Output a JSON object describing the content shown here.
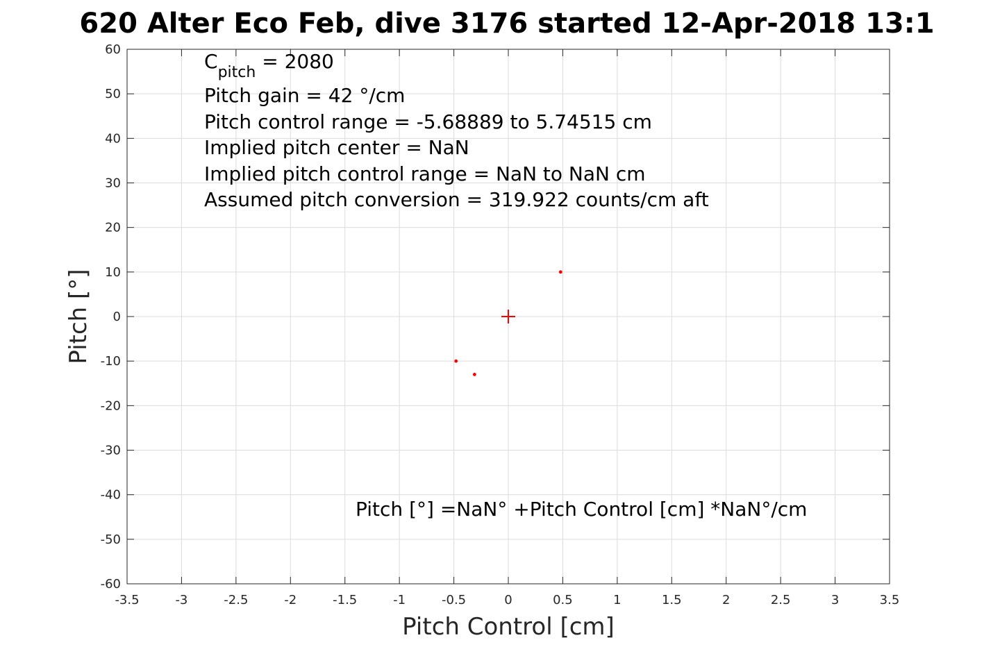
{
  "chart_data": {
    "type": "scatter",
    "title": "620 Alter Eco Feb, dive 3176 started 12-Apr-2018 13:1",
    "xlabel": "Pitch Control [cm]",
    "ylabel": "Pitch [°]",
    "xlim": [
      -3.5,
      3.5
    ],
    "ylim": [
      -60,
      60
    ],
    "xticks": [
      -3.5,
      -3,
      -2.5,
      -2,
      -1.5,
      -1,
      -0.5,
      0,
      0.5,
      1,
      1.5,
      2,
      2.5,
      3,
      3.5
    ],
    "xtick_labels": [
      "-3.5",
      "-3",
      "-2.5",
      "-2",
      "-1.5",
      "-1",
      "-0.5",
      "0",
      "0.5",
      "1",
      "1.5",
      "2",
      "2.5",
      "3",
      "3.5"
    ],
    "yticks": [
      -60,
      -50,
      -40,
      -30,
      -20,
      -10,
      0,
      10,
      20,
      30,
      40,
      50,
      60
    ],
    "ytick_labels": [
      "-60",
      "-50",
      "-40",
      "-30",
      "-20",
      "-10",
      "0",
      "10",
      "20",
      "30",
      "40",
      "50",
      "60"
    ],
    "grid": true,
    "series": [
      {
        "marker": "dot",
        "color": "#ff0000",
        "points": [
          {
            "x": -0.48,
            "y": -10
          },
          {
            "x": -0.31,
            "y": -13
          },
          {
            "x": 0.48,
            "y": 10
          }
        ]
      },
      {
        "marker": "plus",
        "color": "#ff0000",
        "points": [
          {
            "x": 0,
            "y": 0
          }
        ]
      }
    ],
    "annotations": {
      "cpitch_main": "C",
      "cpitch_sub": "pitch",
      "cpitch_value": " = 2080",
      "lines": [
        "Pitch gain = 42 °/cm",
        "Pitch control range = -5.68889 to 5.74515 cm",
        "Implied pitch center = NaN",
        "Implied pitch control range = NaN to NaN cm",
        "Assumed pitch conversion = 319.922 counts/cm aft"
      ],
      "fit_equation": "Pitch [°] =NaN° +Pitch Control [cm] *NaN°/cm"
    }
  }
}
